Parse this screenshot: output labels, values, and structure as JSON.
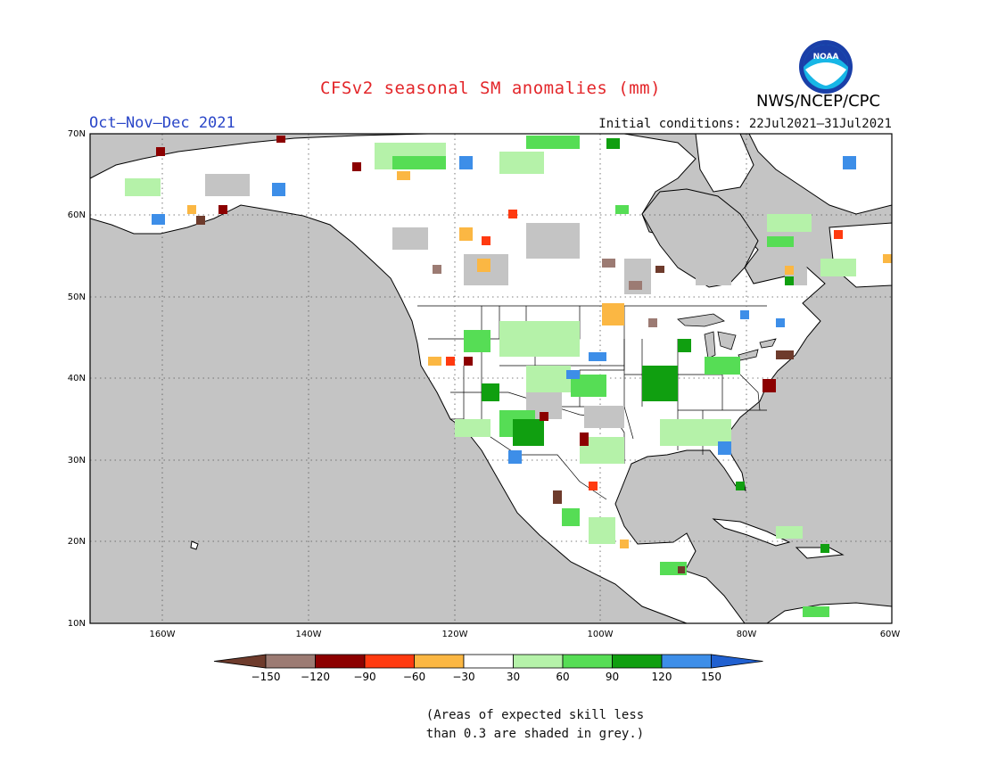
{
  "title": "CFSv2 seasonal SM anomalies (mm)",
  "period": "Oct–Nov–Dec 2021",
  "initial_conditions": "Initial conditions: 22Jul2021–31Jul2021",
  "agency": "NWS/NCEP/CPC",
  "logo_text": "NOAA",
  "lat_labels": [
    "70N",
    "60N",
    "50N",
    "40N",
    "30N",
    "20N",
    "10N"
  ],
  "lon_labels": [
    "160W",
    "140W",
    "120W",
    "100W",
    "80W",
    "60W"
  ],
  "colorbar": {
    "labels": [
      "−150",
      "−120",
      "−90",
      "−60",
      "−30",
      "30",
      "60",
      "90",
      "120",
      "150"
    ],
    "colors": [
      "#6e3b2c",
      "#9c7b73",
      "#8c0000",
      "#ff3a10",
      "#fbb743",
      "#ffffff",
      "#b5f2a9",
      "#56dd55",
      "#109f10",
      "#3d8ee8",
      "#2060d0"
    ]
  },
  "note": {
    "line1": "(Areas of expected skill less",
    "line2": "than 0.3 are shaded in grey.)"
  },
  "colors": {
    "ocean": "#c4c4c4",
    "land": "#ffffff",
    "grey_skill": "#c4c4c4",
    "title": "#e3262a",
    "period": "#2a46c8"
  }
}
